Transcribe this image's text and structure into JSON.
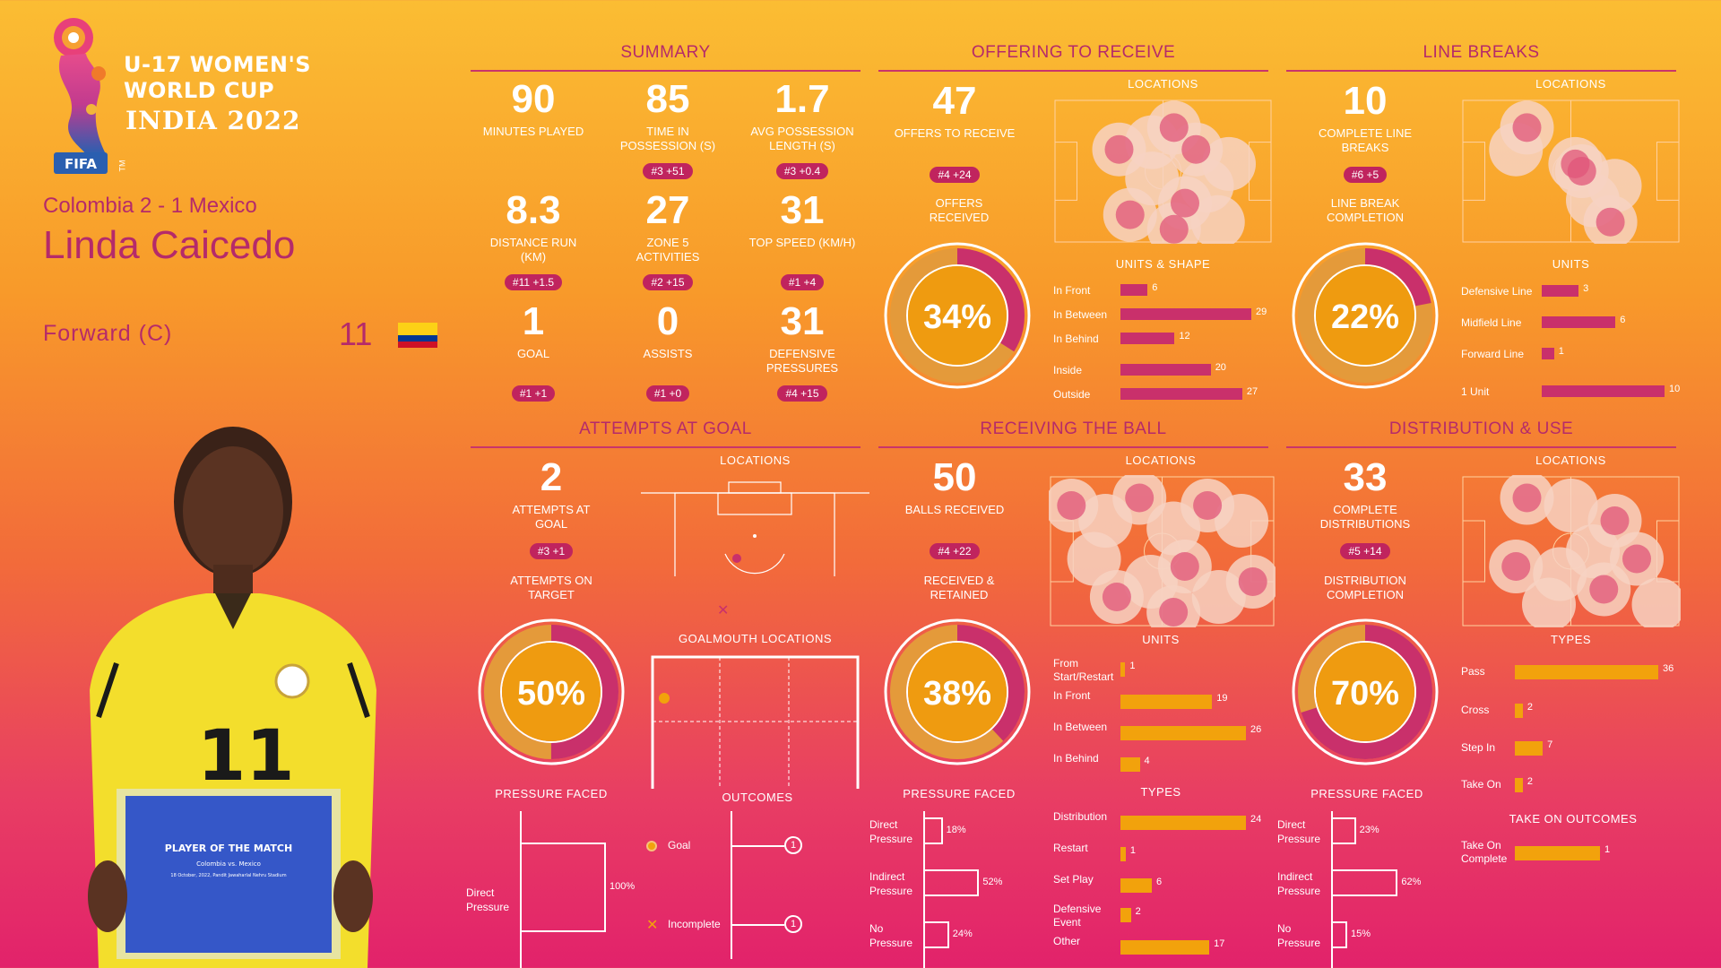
{
  "event": {
    "logo_text": "FIFA",
    "title_line1": "U-17 WOMEN'S",
    "title_line2": "WORLD CUP",
    "subtitle": "INDIA 2022",
    "tm": "TM"
  },
  "player": {
    "match": "Colombia 2 - 1 Mexico",
    "name": "Linda Caicedo",
    "position": "Forward (C)",
    "number": "11",
    "shirt_number": "11",
    "plaque_title": "PLAYER OF THE MATCH",
    "plaque_match": "Colombia vs. Mexico",
    "plaque_date": "18 October, 2022, Pandit Jawaharlal Nehru Stadium"
  },
  "summary": {
    "title": "SUMMARY",
    "stats": [
      {
        "value": "90",
        "label": "MINUTES PLAYED",
        "rank": ""
      },
      {
        "value": "85",
        "label": "TIME IN POSSESSION (s)",
        "rank": "#3 +51"
      },
      {
        "value": "1.7",
        "label": "AVG POSSESSION LENGTH (s)",
        "rank": "#3 +0.4"
      },
      {
        "value": "8.3",
        "label": "DISTANCE RUN (KM)",
        "rank": "#11 +1.5"
      },
      {
        "value": "27",
        "label": "ZONE 5 ACTIVITIES",
        "rank": "#2 +15"
      },
      {
        "value": "31",
        "label": "TOP SPEED (KM/H)",
        "rank": "#1 +4"
      },
      {
        "value": "1",
        "label": "GOAL",
        "rank": "#1 +1"
      },
      {
        "value": "0",
        "label": "ASSISTS",
        "rank": "#1 +0"
      },
      {
        "value": "31",
        "label": "DEFENSIVE PRESSURES",
        "rank": "#4 +15"
      }
    ]
  },
  "offering": {
    "title": "OFFERING TO RECEIVE",
    "value": "47",
    "label": "OFFERS TO RECEIVE",
    "rank": "#4 +24",
    "donut_label": "OFFERS RECEIVED",
    "donut_pct": 34,
    "donut_text": "34%",
    "locations": "LOCATIONS",
    "units_title": "UNITS & SHAPE",
    "bars": [
      {
        "label": "In Front",
        "value": 6
      },
      {
        "label": "In Between",
        "value": 29
      },
      {
        "label": "In Behind",
        "value": 12
      },
      {
        "label": "Inside",
        "value": 20
      },
      {
        "label": "Outside",
        "value": 27
      }
    ]
  },
  "linebreaks": {
    "title": "LINE BREAKS",
    "value": "10",
    "label": "COMPLETE LINE BREAKS",
    "rank": "#6 +5",
    "donut_label": "LINE BREAK COMPLETION",
    "donut_pct": 22,
    "donut_text": "22%",
    "locations": "LOCATIONS",
    "units_title": "UNITS",
    "bars": [
      {
        "label": "Defensive Line",
        "value": 3
      },
      {
        "label": "Midfield Line",
        "value": 6
      },
      {
        "label": "Forward Line",
        "value": 1
      },
      {
        "label": "1 Unit",
        "value": 10
      }
    ]
  },
  "attempts": {
    "title": "ATTEMPTS AT GOAL",
    "value": "2",
    "label": "ATTEMPTS AT GOAL",
    "rank": "#3 +1",
    "donut_label": "ATTEMPTS ON TARGET",
    "donut_pct": 50,
    "donut_text": "50%",
    "locations": "LOCATIONS",
    "goalmouth": "GOALMOUTH LOCATIONS",
    "pressure_title": "PRESSURE FACED",
    "pressure": [
      {
        "label": "Direct Pressure",
        "pct": 100,
        "text": "100%"
      }
    ],
    "outcomes_title": "OUTCOMES",
    "outcomes": [
      {
        "label": "Goal",
        "count": "1"
      },
      {
        "label": "Incomplete",
        "count": "1"
      }
    ]
  },
  "receiving": {
    "title": "RECEIVING THE BALL",
    "value": "50",
    "label": "BALLS RECEIVED",
    "rank": "#4 +22",
    "donut_label": "RECEIVED & RETAINED",
    "donut_pct": 38,
    "donut_text": "38%",
    "locations": "LOCATIONS",
    "units_title": "UNITS",
    "units": [
      {
        "label": "From Start/Restart",
        "value": 1
      },
      {
        "label": "In Front",
        "value": 19
      },
      {
        "label": "In Between",
        "value": 26
      },
      {
        "label": "In Behind",
        "value": 4
      }
    ],
    "types_title": "TYPES",
    "types": [
      {
        "label": "Distribution",
        "value": 24
      },
      {
        "label": "Restart",
        "value": 1
      },
      {
        "label": "Set Play",
        "value": 6
      },
      {
        "label": "Defensive Event",
        "value": 2
      },
      {
        "label": "Other",
        "value": 17
      }
    ],
    "pressure_title": "PRESSURE FACED",
    "pressure": [
      {
        "label": "Direct Pressure",
        "pct": 18,
        "text": "18%"
      },
      {
        "label": "Indirect Pressure",
        "pct": 52,
        "text": "52%"
      },
      {
        "label": "No Pressure",
        "pct": 24,
        "text": "24%"
      }
    ]
  },
  "distribution": {
    "title": "DISTRIBUTION & USE",
    "value": "33",
    "label": "COMPLETE DISTRIBUTIONS",
    "rank": "#5 +14",
    "donut_label": "DISTRIBUTION COMPLETION",
    "donut_pct": 70,
    "donut_text": "70%",
    "locations": "LOCATIONS",
    "types_title": "TYPES",
    "types": [
      {
        "label": "Pass",
        "value": 36
      },
      {
        "label": "Cross",
        "value": 2
      },
      {
        "label": "Step In",
        "value": 7
      },
      {
        "label": "Take On",
        "value": 2
      }
    ],
    "takeon_title": "TAKE ON OUTCOMES",
    "takeon": [
      {
        "label": "Take On Complete",
        "value": 1
      }
    ],
    "pressure_title": "PRESSURE FACED",
    "pressure": [
      {
        "label": "Direct Pressure",
        "pct": 23,
        "text": "23%"
      },
      {
        "label": "Indirect Pressure",
        "pct": 62,
        "text": "62%"
      },
      {
        "label": "No Pressure",
        "pct": 15,
        "text": "15%"
      }
    ]
  },
  "colors": {
    "magenta": "#c9306b",
    "orange": "#f2a20c",
    "donut_bg": "#e49a3a",
    "title": "#b52a6a"
  }
}
